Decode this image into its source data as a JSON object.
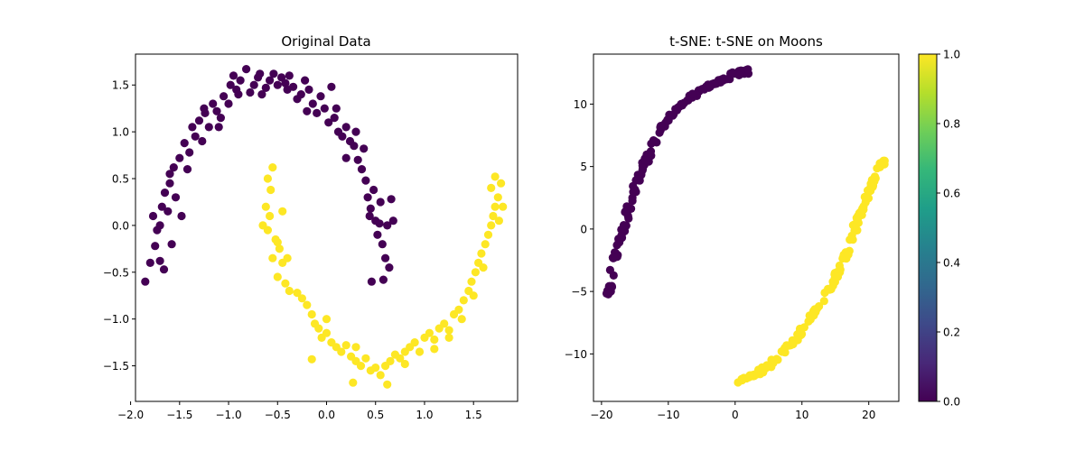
{
  "chart_data": [
    {
      "type": "scatter",
      "title": "Original Data",
      "xlabel": "",
      "ylabel": "",
      "xlim": [
        -1.95,
        1.95
      ],
      "ylim": [
        -1.88,
        1.83
      ],
      "xticks": [
        -2.0,
        -1.5,
        -1.0,
        -0.5,
        0.0,
        0.5,
        1.0,
        1.5
      ],
      "xtick_labels": [
        "−2.0",
        "−1.5",
        "−1.0",
        "−0.5",
        "0.0",
        "0.5",
        "1.0",
        "1.5"
      ],
      "yticks": [
        -1.5,
        -1.0,
        -0.5,
        0.0,
        0.5,
        1.0,
        1.5
      ],
      "ytick_labels": [
        "−1.5",
        "−1.0",
        "−0.5",
        "0.0",
        "0.5",
        "1.0",
        "1.5"
      ],
      "grid": false,
      "series": [
        {
          "color": "#440154",
          "class_value": 0,
          "points": [
            [
              -1.85,
              -0.6
            ],
            [
              -1.8,
              -0.4
            ],
            [
              -1.77,
              0.1
            ],
            [
              -1.75,
              -0.22
            ],
            [
              -1.73,
              -0.05
            ],
            [
              -1.7,
              -0.38
            ],
            [
              -1.68,
              0.2
            ],
            [
              -1.66,
              -0.47
            ],
            [
              -1.65,
              0.35
            ],
            [
              -1.62,
              0.15
            ],
            [
              -1.6,
              0.45
            ],
            [
              -1.58,
              -0.2
            ],
            [
              -1.56,
              0.62
            ],
            [
              -1.54,
              0.3
            ],
            [
              -1.5,
              0.72
            ],
            [
              -1.48,
              0.1
            ],
            [
              -1.45,
              0.88
            ],
            [
              -1.42,
              0.6
            ],
            [
              -1.4,
              0.78
            ],
            [
              -1.37,
              1.05
            ],
            [
              -1.34,
              0.95
            ],
            [
              -1.3,
              1.12
            ],
            [
              -1.27,
              0.9
            ],
            [
              -1.24,
              1.2
            ],
            [
              -1.2,
              1.05
            ],
            [
              -1.16,
              1.3
            ],
            [
              -1.12,
              1.22
            ],
            [
              -1.08,
              1.15
            ],
            [
              -1.05,
              1.38
            ],
            [
              -1.0,
              1.3
            ],
            [
              -0.98,
              1.5
            ],
            [
              -0.95,
              1.6
            ],
            [
              -0.92,
              1.45
            ],
            [
              -0.88,
              1.55
            ],
            [
              -0.82,
              1.67
            ],
            [
              -0.78,
              1.42
            ],
            [
              -0.74,
              1.5
            ],
            [
              -0.7,
              1.58
            ],
            [
              -0.66,
              1.4
            ],
            [
              -0.62,
              1.47
            ],
            [
              -0.58,
              1.55
            ],
            [
              -0.54,
              1.62
            ],
            [
              -0.5,
              1.5
            ],
            [
              -0.46,
              1.58
            ],
            [
              -0.42,
              1.52
            ],
            [
              -0.38,
              1.6
            ],
            [
              -0.34,
              1.48
            ],
            [
              -0.3,
              1.35
            ],
            [
              -0.26,
              1.4
            ],
            [
              -0.22,
              1.55
            ],
            [
              -0.18,
              1.45
            ],
            [
              -0.14,
              1.3
            ],
            [
              -0.1,
              1.2
            ],
            [
              -0.06,
              1.38
            ],
            [
              -0.02,
              1.25
            ],
            [
              0.02,
              1.1
            ],
            [
              0.05,
              1.48
            ],
            [
              0.08,
              1.15
            ],
            [
              0.12,
              1.0
            ],
            [
              0.16,
              0.95
            ],
            [
              0.2,
              1.05
            ],
            [
              0.24,
              0.9
            ],
            [
              0.28,
              0.85
            ],
            [
              0.32,
              0.7
            ],
            [
              0.36,
              0.6
            ],
            [
              0.4,
              0.48
            ],
            [
              0.42,
              0.3
            ],
            [
              0.45,
              0.18
            ],
            [
              0.48,
              0.38
            ],
            [
              0.5,
              0.05
            ],
            [
              0.52,
              -0.1
            ],
            [
              0.55,
              0.25
            ],
            [
              0.57,
              -0.2
            ],
            [
              0.6,
              -0.35
            ],
            [
              0.62,
              0.0
            ],
            [
              0.64,
              -0.45
            ],
            [
              0.66,
              0.28
            ],
            [
              0.68,
              0.05
            ],
            [
              0.46,
              -0.6
            ],
            [
              0.58,
              -0.58
            ],
            [
              0.2,
              0.72
            ],
            [
              0.3,
              1.0
            ],
            [
              0.1,
              1.25
            ],
            [
              -0.2,
              1.22
            ],
            [
              -0.4,
              1.45
            ],
            [
              -0.9,
              1.4
            ],
            [
              -1.1,
              1.05
            ],
            [
              -1.6,
              0.55
            ],
            [
              -1.7,
              0.0
            ],
            [
              0.44,
              0.1
            ],
            [
              0.54,
              0.02
            ],
            [
              0.38,
              0.82
            ],
            [
              -0.68,
              1.62
            ],
            [
              -1.25,
              1.25
            ]
          ]
        },
        {
          "color": "#fde725",
          "class_value": 1,
          "points": [
            [
              -0.55,
              0.62
            ],
            [
              -0.6,
              0.5
            ],
            [
              -0.57,
              0.38
            ],
            [
              -0.62,
              0.2
            ],
            [
              -0.58,
              0.1
            ],
            [
              -0.65,
              0.0
            ],
            [
              -0.6,
              -0.05
            ],
            [
              -0.52,
              -0.15
            ],
            [
              -0.48,
              -0.25
            ],
            [
              -0.55,
              -0.35
            ],
            [
              -0.45,
              -0.4
            ],
            [
              -0.5,
              -0.55
            ],
            [
              -0.42,
              -0.62
            ],
            [
              -0.38,
              -0.7
            ],
            [
              -0.3,
              -0.72
            ],
            [
              -0.25,
              -0.78
            ],
            [
              -0.2,
              -0.85
            ],
            [
              -0.15,
              -0.95
            ],
            [
              -0.12,
              -1.05
            ],
            [
              -0.08,
              -1.1
            ],
            [
              -0.05,
              -1.2
            ],
            [
              0.0,
              -1.15
            ],
            [
              0.05,
              -1.25
            ],
            [
              0.1,
              -1.3
            ],
            [
              0.15,
              -1.35
            ],
            [
              0.2,
              -1.28
            ],
            [
              0.25,
              -1.4
            ],
            [
              0.3,
              -1.45
            ],
            [
              0.35,
              -1.5
            ],
            [
              0.4,
              -1.42
            ],
            [
              0.45,
              -1.55
            ],
            [
              0.5,
              -1.52
            ],
            [
              0.55,
              -1.6
            ],
            [
              0.6,
              -1.5
            ],
            [
              0.65,
              -1.45
            ],
            [
              0.7,
              -1.38
            ],
            [
              0.75,
              -1.42
            ],
            [
              0.8,
              -1.35
            ],
            [
              0.85,
              -1.3
            ],
            [
              0.9,
              -1.25
            ],
            [
              0.95,
              -1.35
            ],
            [
              1.0,
              -1.2
            ],
            [
              1.05,
              -1.15
            ],
            [
              1.1,
              -1.22
            ],
            [
              1.15,
              -1.1
            ],
            [
              1.2,
              -1.05
            ],
            [
              1.25,
              -1.12
            ],
            [
              1.3,
              -0.95
            ],
            [
              1.35,
              -0.9
            ],
            [
              1.4,
              -0.8
            ],
            [
              1.45,
              -0.7
            ],
            [
              1.48,
              -0.6
            ],
            [
              1.52,
              -0.5
            ],
            [
              1.55,
              -0.4
            ],
            [
              1.58,
              -0.3
            ],
            [
              1.62,
              -0.2
            ],
            [
              1.65,
              -0.1
            ],
            [
              1.68,
              0.0
            ],
            [
              1.7,
              0.1
            ],
            [
              1.72,
              0.2
            ],
            [
              1.75,
              0.3
            ],
            [
              1.78,
              0.45
            ],
            [
              1.72,
              0.52
            ],
            [
              1.68,
              0.4
            ],
            [
              1.8,
              0.2
            ],
            [
              1.76,
              0.05
            ],
            [
              1.6,
              -0.45
            ],
            [
              1.5,
              -0.75
            ],
            [
              1.38,
              -1.0
            ],
            [
              1.25,
              -1.2
            ],
            [
              0.62,
              -1.7
            ],
            [
              0.27,
              -1.68
            ],
            [
              -0.15,
              -1.43
            ],
            [
              -0.4,
              -0.35
            ],
            [
              -0.5,
              -0.18
            ],
            [
              -0.45,
              0.15
            ],
            [
              0.0,
              -1.0
            ],
            [
              0.3,
              -1.3
            ],
            [
              0.8,
              -1.48
            ],
            [
              1.1,
              -1.32
            ]
          ]
        }
      ]
    },
    {
      "type": "scatter",
      "title": "t-SNE: t-SNE on Moons",
      "xlabel": "",
      "ylabel": "",
      "xlim": [
        -21.2,
        24.5
      ],
      "ylim": [
        -13.8,
        14.0
      ],
      "xticks": [
        -20,
        -10,
        0,
        10,
        20
      ],
      "xtick_labels": [
        "−20",
        "−10",
        "0",
        "10",
        "20"
      ],
      "yticks": [
        -10,
        -5,
        0,
        5,
        10
      ],
      "ytick_labels": [
        "−10",
        "−5",
        "0",
        "5",
        "10"
      ],
      "grid": false,
      "series": [
        {
          "color": "#440154",
          "class_value": 0,
          "curve": [
            [
              -19.0,
              -5.4
            ],
            [
              -18.5,
              -3.5
            ],
            [
              -17.5,
              -1.5
            ],
            [
              -16.5,
              0.5
            ],
            [
              -15.5,
              2.5
            ],
            [
              -14.0,
              4.8
            ],
            [
              -12.0,
              7.0
            ],
            [
              -10.0,
              8.8
            ],
            [
              -8.0,
              10.0
            ],
            [
              -5.0,
              11.2
            ],
            [
              -2.0,
              12.0
            ],
            [
              0.0,
              12.5
            ],
            [
              2.0,
              12.6
            ]
          ],
          "count": 150
        },
        {
          "color": "#fde725",
          "class_value": 1,
          "curve": [
            [
              0.5,
              -12.3
            ],
            [
              3.0,
              -11.7
            ],
            [
              6.0,
              -10.5
            ],
            [
              9.0,
              -8.8
            ],
            [
              12.0,
              -6.5
            ],
            [
              15.0,
              -4.0
            ],
            [
              17.0,
              -1.5
            ],
            [
              18.5,
              1.0
            ],
            [
              20.0,
              3.0
            ],
            [
              21.5,
              4.8
            ],
            [
              22.3,
              5.5
            ]
          ],
          "count": 150
        }
      ]
    }
  ],
  "colorbar": {
    "ticks": [
      0.0,
      0.2,
      0.4,
      0.6,
      0.8,
      1.0
    ],
    "tick_labels": [
      "0.0",
      "0.2",
      "0.4",
      "0.6",
      "0.8",
      "1.0"
    ],
    "colormap": [
      "#440154",
      "#482878",
      "#3e4989",
      "#31688e",
      "#26828e",
      "#1f9e89",
      "#35b779",
      "#6ece58",
      "#b5de2b",
      "#fde725"
    ]
  }
}
